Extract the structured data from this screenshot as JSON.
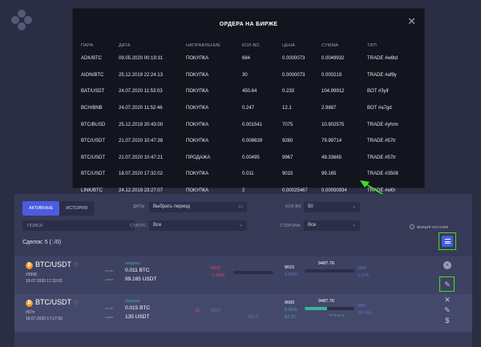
{
  "modal": {
    "title": "ОРДЕРА НА БИРЖЕ",
    "close": "✕",
    "columns": [
      "ПАРА",
      "ДАТА",
      "НАПРАВЛЕНИЕ",
      "КОЛ-ВО",
      "ЦЕНА",
      "СУММА",
      "ТИП"
    ],
    "rows": [
      {
        "pair": "ADK/BTC",
        "date": "09.05.2020 00:19:31",
        "direction": "ПОКУПКА",
        "side": "buy",
        "qty": "684",
        "price": "0.0000073",
        "sum": "0.0049932",
        "type": "TRADE #w8td"
      },
      {
        "pair": "AION/BTC",
        "date": "25.12.2019 22:24:13",
        "direction": "ПОКУПКА",
        "side": "buy",
        "qty": "30",
        "price": "0.0000073",
        "sum": "0.000219",
        "type": "TRADE #af9y"
      },
      {
        "pair": "BAT/USDT",
        "date": "24.07.2020 11:53:03",
        "direction": "ПОКУПКА",
        "side": "buy",
        "qty": "450.64",
        "price": "0.233",
        "sum": "104.99912",
        "type": "BOT #3yif"
      },
      {
        "pair": "BCH/BNB",
        "date": "24.07.2020 11:52:46",
        "direction": "ПОКУПКА",
        "side": "buy",
        "qty": "0.247",
        "price": "12.1",
        "sum": "2.9887",
        "type": "BOT #a7gd"
      },
      {
        "pair": "BTC/BUSD",
        "date": "25.12.2019 20:43:00",
        "direction": "ПОКУПКА",
        "side": "buy",
        "qty": "0.001541",
        "price": "7075",
        "sum": "10.902575",
        "type": "TRADE #yhrm"
      },
      {
        "pair": "BTC/USDT",
        "date": "21.07.2020 10:47:38",
        "direction": "ПОКУПКА",
        "side": "buy",
        "qty": "0.008639",
        "price": "9260",
        "sum": "79.99714",
        "type": "TRADE #57tr"
      },
      {
        "pair": "BTC/USDT",
        "date": "21.07.2020 10:47:21",
        "direction": "ПРОДАЖА",
        "side": "sell",
        "qty": "0.00495",
        "price": "9967",
        "sum": "49.33665",
        "type": "TRADE #57tr"
      },
      {
        "pair": "BTC/USDT",
        "date": "18.07.2020 17:32:02",
        "direction": "ПОКУПКА",
        "side": "buy",
        "qty": "0.011",
        "price": "9015",
        "sum": "99.165",
        "type": "TRADE #3508"
      },
      {
        "pair": "LINK/BTC",
        "date": "24.12.2019 23:27:07",
        "direction": "ПОКУПКА",
        "side": "buy",
        "qty": "2",
        "price": "0.00025467",
        "sum": "0.00050934",
        "type": "TRADE #el0r"
      }
    ]
  },
  "panel": {
    "tabs": [
      {
        "label": "АКТИВНЫЕ",
        "active": true
      },
      {
        "label": "ИСТОРИЯ",
        "active": false
      }
    ],
    "search_placeholder": "ПОИСК",
    "filters": {
      "dates_label": "ДАТЫ",
      "dates_value": "Выбрать период",
      "status_label": "СТАТУС",
      "status_value": "Все",
      "qty_label": "КОЛ-ВО",
      "qty_value": "50",
      "side_label": "СТОРОНА",
      "side_value": "Все"
    },
    "pair_filter_label": "ФИЛЬТР ПО ПАРЕ",
    "deals": {
      "prefix": "Сделок: 5 (",
      "highlight": "1",
      "suffix": "/0)"
    },
    "trades": [
      {
        "coin": "₿",
        "pair": "BTC/USDT",
        "info_icon": "ⓘ",
        "id": "#3508",
        "date": "18.07.2020 17:32:01",
        "direction": "покупка",
        "amount_label": "кол-во",
        "amount": "0.011 BTC",
        "total_label": "сумма",
        "total": "99.165 USDT",
        "p1": "9505",
        "p2": "-1.22%",
        "q1": "9015",
        "q2": "5.24%",
        "current": "9487.76",
        "progress": 0,
        "r1": "9505",
        "r2": "1.22%"
      },
      {
        "coin": "₿",
        "pair": "BTC/USDT",
        "info_icon": "ⓘ",
        "id": "#57tr",
        "date": "18.07.2020 17:17:50",
        "direction": "покупка",
        "amount_label": "кол-во",
        "amount": "0.015 BTC",
        "total_label": "сумма",
        "total": "135 USDT",
        "sl": "SL",
        "sl_value": "5000",
        "buy": "BUY",
        "q1": "9000",
        "q2": "5.42%",
        "q3": "$7.31",
        "current": "9487.76",
        "progress": 0.45,
        "tp": "TP 3 из 5",
        "r1": "9887",
        "r2": "10.74%"
      }
    ]
  }
}
